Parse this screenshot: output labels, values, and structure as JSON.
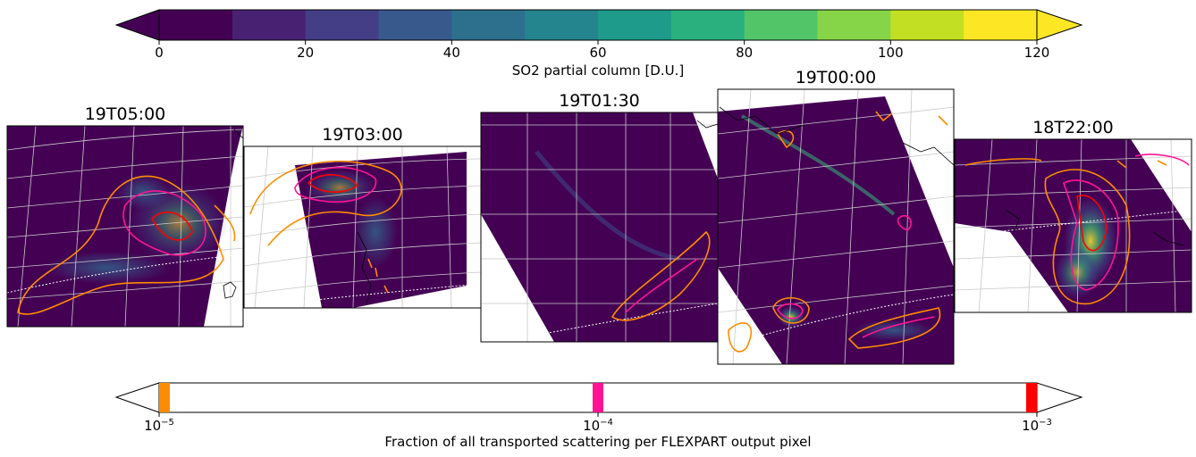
{
  "chart_data": {
    "type": "heatmap",
    "quantity_colorbar": {
      "label": "SO2 partial column [D.U.]",
      "colormap": "viridis",
      "range": [
        0,
        120
      ],
      "step": 10,
      "extend": "both",
      "ticks": [
        "0",
        "20",
        "40",
        "60",
        "80",
        "100",
        "120"
      ],
      "tick_values": [
        0,
        20,
        40,
        60,
        80,
        100,
        120
      ]
    },
    "panels": [
      {
        "title": "19T05:00"
      },
      {
        "title": "19T03:00"
      },
      {
        "title": "19T01:30"
      },
      {
        "title": "19T00:00"
      },
      {
        "title": "18T22:00"
      }
    ],
    "contour_colorbar": {
      "label": "Fraction of all transported scattering per FLEXPART output pixel",
      "scale": "log",
      "range": [
        1e-05,
        0.001
      ],
      "ticks": [
        {
          "value": 1e-05,
          "base": "10",
          "exp": "−5"
        },
        {
          "value": 0.0001,
          "base": "10",
          "exp": "−4"
        },
        {
          "value": 0.001,
          "base": "10",
          "exp": "−3"
        }
      ],
      "levels": [
        {
          "value": 1e-05,
          "color": "#ff8c00"
        },
        {
          "value": 0.0001,
          "color": "#ff1493"
        },
        {
          "value": 0.001,
          "color": "#ff0000"
        }
      ]
    }
  },
  "colors": {
    "background_fill": "#440154",
    "grid": "#c8c8c8",
    "coast": "#000000"
  }
}
